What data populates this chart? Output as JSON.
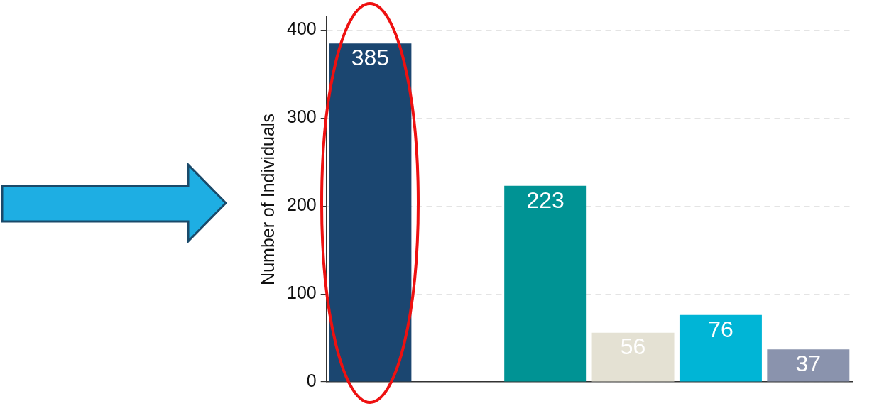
{
  "chart_data": {
    "type": "bar",
    "ylabel": "Number of Individuals",
    "categories": [
      null,
      null,
      null,
      null,
      null,
      null
    ],
    "values": [
      385,
      null,
      223,
      56,
      76,
      37
    ],
    "colors": [
      "#1b4670",
      "#1b4670",
      "#009394",
      "#e4e1d3",
      "#00b5d6",
      "#8a93ad"
    ],
    "ylim": [
      0,
      415
    ],
    "yticks": [
      0,
      100,
      200,
      300,
      400
    ],
    "grid": "y",
    "data_labels": true
  }
}
